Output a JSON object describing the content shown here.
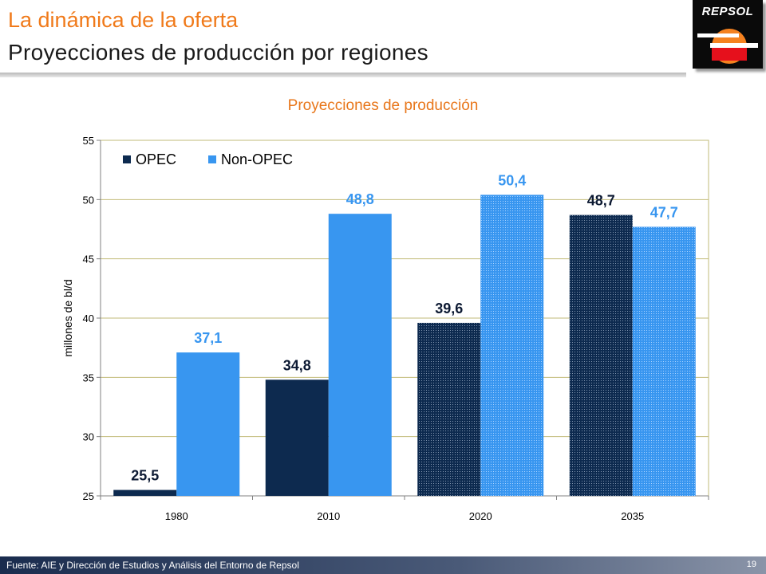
{
  "header": {
    "title_line1": "La dinámica de la oferta",
    "title_line2": "Proyecciones de producción por regiones",
    "logo_text": "REPSOL"
  },
  "chart_data": {
    "type": "bar",
    "title": "Proyecciones de producción",
    "ylabel": "millones de bl/d",
    "xlabel": "",
    "ylim": [
      25,
      55
    ],
    "yticks": [
      25,
      30,
      35,
      40,
      45,
      50,
      55
    ],
    "categories": [
      "1980",
      "2010",
      "2020",
      "2035"
    ],
    "series": [
      {
        "name": "OPEC",
        "values": [
          25.5,
          34.8,
          39.6,
          48.7
        ],
        "labels": [
          "25,5",
          "34,8",
          "39,6",
          "48,7"
        ],
        "color": "#0d2a4f"
      },
      {
        "name": "Non-OPEC",
        "values": [
          37.1,
          48.8,
          50.4,
          47.7
        ],
        "labels": [
          "37,1",
          "48,8",
          "50,4",
          "47,7"
        ],
        "color": "#3896f0"
      }
    ],
    "projected_categories": [
      "2020",
      "2035"
    ],
    "grid": true,
    "legend_position": "top-left",
    "label_colors": {
      "OPEC": "#0d1a33",
      "Non-OPEC": "#3896f0"
    }
  },
  "footer": {
    "source": "Fuente: AIE y Dirección de Estudios y Análisis del Entorno de Repsol",
    "page": "19"
  }
}
